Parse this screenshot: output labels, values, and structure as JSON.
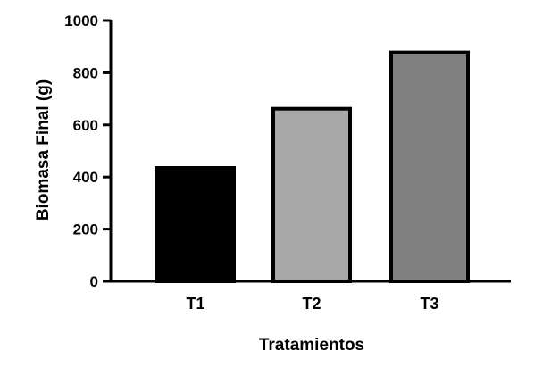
{
  "chart_data": {
    "type": "bar",
    "categories": [
      "T1",
      "T2",
      "T3"
    ],
    "values": [
      435,
      662,
      878
    ],
    "xlabel": "Tratamientos",
    "ylabel": "Biomasa Final (g)",
    "ylim": [
      0,
      1000
    ],
    "yticks": [
      "0",
      "200",
      "400",
      "600",
      "800",
      "1000"
    ],
    "bar_colors": [
      "#000000",
      "#a8a8a8",
      "#808080"
    ],
    "bar_outline": "#000000",
    "grid": false,
    "legend": "none"
  }
}
